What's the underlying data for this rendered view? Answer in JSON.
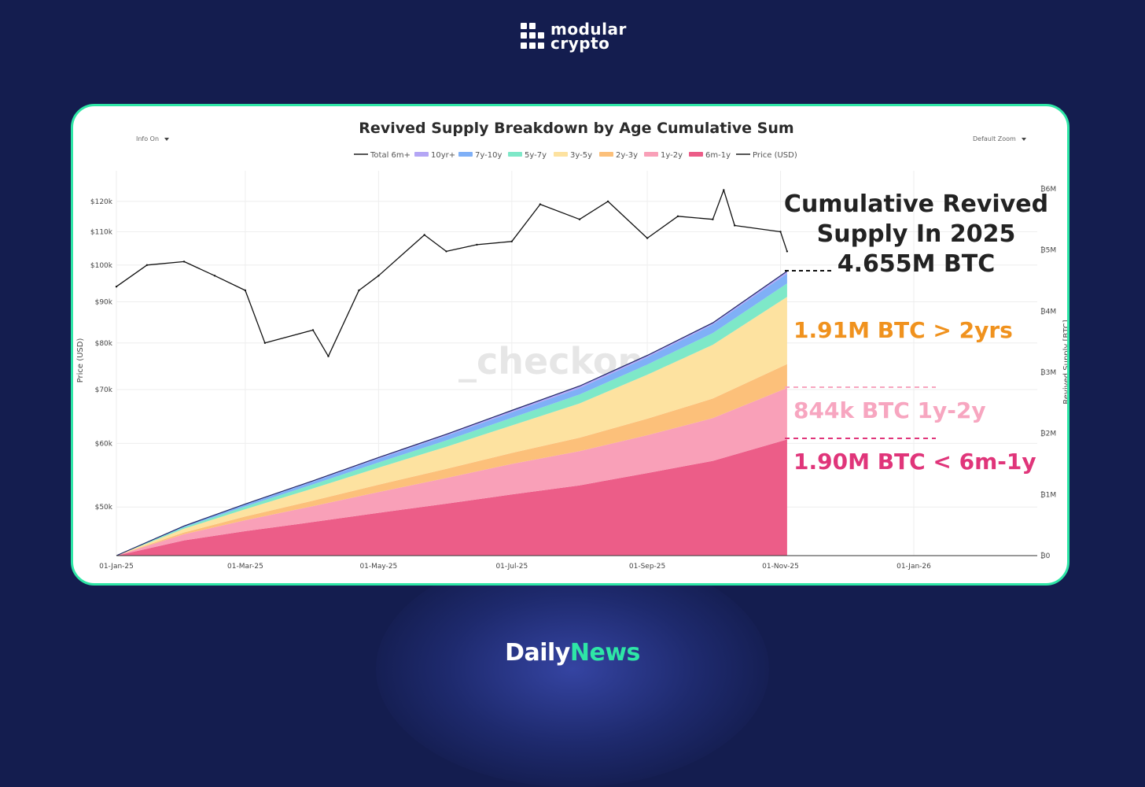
{
  "brand": {
    "line1": "modular",
    "line2": "crypto",
    "icon": "modular-grid-logo-icon"
  },
  "footer": {
    "part1": "Daily",
    "part2": "News"
  },
  "chart_data": {
    "type": "area",
    "title": "Revived Supply Breakdown by Age Cumulative Sum",
    "controls": {
      "left": "Info On",
      "right": "Default Zoom"
    },
    "legend_placement": "top-center",
    "legend": [
      {
        "name": "Total 6m+",
        "color": "#555555"
      },
      {
        "name": "10yr+",
        "color": "#b4a6f5"
      },
      {
        "name": "7y-10y",
        "color": "#7fb0f7"
      },
      {
        "name": "5y-7y",
        "color": "#7ee8c8"
      },
      {
        "name": "3y-5y",
        "color": "#fde2a0"
      },
      {
        "name": "2y-3y",
        "color": "#fcc07a"
      },
      {
        "name": "1y-2y",
        "color": "#f9a0b8"
      },
      {
        "name": "6m-1y",
        "color": "#ec5d88"
      },
      {
        "name": "Price (USD)",
        "color": "#555555"
      }
    ],
    "watermark": "_checkonchain",
    "x_ticks": [
      "01-Jan-25",
      "01-Mar-25",
      "01-May-25",
      "01-Jul-25",
      "01-Sep-25",
      "01-Nov-25",
      "01-Jan-26"
    ],
    "left_axis": {
      "label": "Price (USD)",
      "scale": "log",
      "ticks": [
        {
          "v": 50000,
          "t": "$50k"
        },
        {
          "v": 60000,
          "t": "$60k"
        },
        {
          "v": 70000,
          "t": "$70k"
        },
        {
          "v": 80000,
          "t": "$80k"
        },
        {
          "v": 90000,
          "t": "$90k"
        },
        {
          "v": 100000,
          "t": "$100k"
        },
        {
          "v": 110000,
          "t": "$110k"
        },
        {
          "v": 120000,
          "t": "$120k"
        }
      ]
    },
    "right_axis": {
      "label": "Revived Supply [BTC]",
      "range": [
        0,
        6000000
      ],
      "ticks": [
        {
          "v": 0,
          "t": "₿0"
        },
        {
          "v": 1000000,
          "t": "₿1M"
        },
        {
          "v": 2000000,
          "t": "₿2M"
        },
        {
          "v": 3000000,
          "t": "₿3M"
        },
        {
          "v": 4000000,
          "t": "₿4M"
        },
        {
          "v": 5000000,
          "t": "₿5M"
        },
        {
          "v": 6000000,
          "t": "₿6M"
        }
      ]
    },
    "price_series": {
      "name": "Price (USD)",
      "x": [
        "01-Jan-25",
        "15-Jan-25",
        "01-Feb-25",
        "15-Feb-25",
        "01-Mar-25",
        "10-Mar-25",
        "01-Apr-25",
        "08-Apr-25",
        "22-Apr-25",
        "01-May-25",
        "22-May-25",
        "01-Jun-25",
        "15-Jun-25",
        "01-Jul-25",
        "14-Jul-25",
        "01-Aug-25",
        "14-Aug-25",
        "01-Sep-25",
        "15-Sep-25",
        "01-Oct-25",
        "06-Oct-25",
        "11-Oct-25",
        "01-Nov-25",
        "04-Nov-25"
      ],
      "values": [
        94000,
        100000,
        101000,
        97000,
        93000,
        80000,
        83000,
        77000,
        93000,
        97000,
        109000,
        104000,
        106000,
        107000,
        119000,
        114000,
        120000,
        108000,
        115000,
        114000,
        124000,
        112000,
        110000,
        104000
      ]
    },
    "supply_cumulative": {
      "x": [
        "01-Jan-25",
        "01-Feb-25",
        "01-Mar-25",
        "01-Apr-25",
        "01-May-25",
        "01-Jun-25",
        "01-Jul-25",
        "01-Aug-25",
        "01-Sep-25",
        "01-Oct-25",
        "04-Nov-25"
      ],
      "series": [
        {
          "name": "6m-1y",
          "values": [
            0,
            250000,
            400000,
            550000,
            700000,
            850000,
            1000000,
            1150000,
            1350000,
            1550000,
            1900000
          ]
        },
        {
          "name": "1y-2y",
          "values": [
            0,
            100000,
            180000,
            260000,
            340000,
            420000,
            500000,
            560000,
            620000,
            700000,
            844000
          ]
        },
        {
          "name": "2y-3y",
          "values": [
            0,
            30000,
            60000,
            90000,
            120000,
            150000,
            180000,
            220000,
            270000,
            320000,
            390000
          ]
        },
        {
          "name": "3y-5y",
          "values": [
            0,
            60000,
            120000,
            200000,
            280000,
            360000,
            450000,
            560000,
            720000,
            880000,
            1100000
          ]
        },
        {
          "name": "5y-7y",
          "values": [
            0,
            25000,
            45000,
            65000,
            85000,
            105000,
            125000,
            145000,
            165000,
            190000,
            220000
          ]
        },
        {
          "name": "7y-10y",
          "values": [
            0,
            15000,
            30000,
            45000,
            60000,
            75000,
            90000,
            105000,
            120000,
            140000,
            160000
          ]
        },
        {
          "name": "10yr+",
          "values": [
            0,
            5000,
            10000,
            15000,
            20000,
            25000,
            30000,
            35000,
            30000,
            28000,
            41000
          ]
        }
      ]
    },
    "annotations": [
      {
        "lines": [
          "Cumulative Revived",
          "Supply In 2025",
          "4.655M BTC"
        ],
        "color": "#222222"
      },
      {
        "text": "1.91M BTC > 2yrs",
        "color": "#f0921e"
      },
      {
        "text": "844k BTC 1y-2y",
        "color": "#f7a6c0"
      },
      {
        "text": "1.90M BTC < 6m-1y",
        "color": "#e0357a"
      }
    ]
  }
}
